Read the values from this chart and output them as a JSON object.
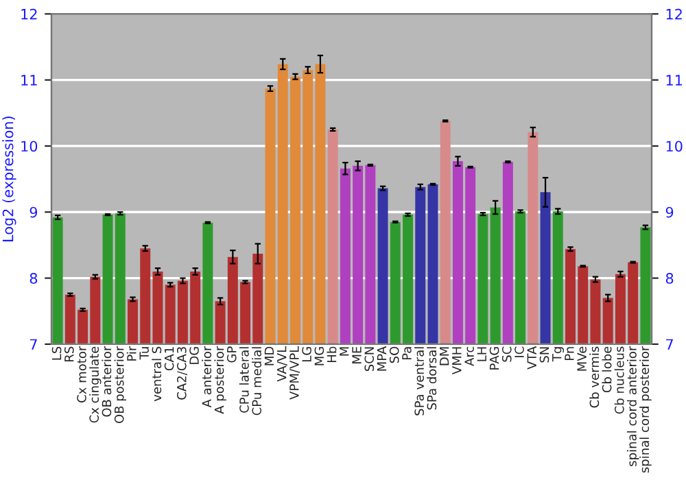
{
  "chart_data": {
    "type": "bar",
    "ylabel": "Log2 (expression)",
    "categories": [
      "LS",
      "RS",
      "Cx motor",
      "Cx cingulate",
      "OB anterior",
      "OB posterior",
      "Pir",
      "Tu",
      "ventral S",
      "CA1",
      "CA2/CA3",
      "DG",
      "A anterior",
      "A posterior",
      "GP",
      "CPu lateral",
      "CPu medial",
      "MD",
      "VA/VL",
      "VPM/VPL",
      "LG",
      "MG",
      "Hb",
      "M",
      "ME",
      "SCN",
      "MPA",
      "SO",
      "Pa",
      "SPa ventral",
      "SPa dorsal",
      "DM",
      "VMH",
      "Arc",
      "LH",
      "PAG",
      "SC",
      "IC",
      "VTA",
      "SN",
      "Tg",
      "Pn",
      "MVe",
      "Cb vermis",
      "Cb lobe",
      "Cb nucleus",
      "spinal cord anterior",
      "spinal cord posterior"
    ],
    "values": [
      8.92,
      7.75,
      7.52,
      8.02,
      8.96,
      8.98,
      7.68,
      8.45,
      8.1,
      7.9,
      7.96,
      8.1,
      8.84,
      7.65,
      8.32,
      7.94,
      8.37,
      10.87,
      11.24,
      11.05,
      11.15,
      11.24,
      10.25,
      9.66,
      9.7,
      9.71,
      9.36,
      8.85,
      8.96,
      9.38,
      9.42,
      10.38,
      9.77,
      9.68,
      8.97,
      9.07,
      9.76,
      9.01,
      10.21,
      9.3,
      9.01,
      8.44,
      8.18,
      7.98,
      7.7,
      8.06,
      8.24,
      8.77
    ],
    "errors": [
      0.03,
      0.02,
      0.02,
      0.03,
      0.01,
      0.02,
      0.03,
      0.04,
      0.05,
      0.03,
      0.04,
      0.05,
      0.01,
      0.05,
      0.1,
      0.02,
      0.15,
      0.04,
      0.08,
      0.04,
      0.05,
      0.13,
      0.02,
      0.09,
      0.07,
      0.01,
      0.03,
      0.01,
      0.02,
      0.04,
      0.01,
      0.01,
      0.07,
      0.01,
      0.02,
      0.1,
      0.01,
      0.02,
      0.07,
      0.22,
      0.04,
      0.03,
      0.01,
      0.04,
      0.05,
      0.04,
      0.01,
      0.03
    ],
    "colors": [
      "#2e9a2e",
      "#b33030",
      "#b33030",
      "#b33030",
      "#2e9a2e",
      "#2e9a2e",
      "#b33030",
      "#b33030",
      "#b33030",
      "#b33030",
      "#b33030",
      "#b33030",
      "#2e9a2e",
      "#b33030",
      "#b33030",
      "#b33030",
      "#b33030",
      "#e08a3a",
      "#e08a3a",
      "#e08a3a",
      "#e08a3a",
      "#e08a3a",
      "#d88a8a",
      "#b040c0",
      "#b040c0",
      "#b040c0",
      "#3535a5",
      "#2e9a2e",
      "#2e9a2e",
      "#3535a5",
      "#3535a5",
      "#d88a8a",
      "#b040c0",
      "#b040c0",
      "#2e9a2e",
      "#2e9a2e",
      "#b040c0",
      "#2e9a2e",
      "#d88a8a",
      "#3535a5",
      "#2e9a2e",
      "#b33030",
      "#b33030",
      "#b33030",
      "#b33030",
      "#b33030",
      "#b33030",
      "#2e9a2e"
    ],
    "ylim": [
      7,
      12
    ],
    "yticks": [
      7,
      8,
      9,
      10,
      11,
      12
    ],
    "y2lim": [
      7,
      12
    ],
    "y2ticks": [
      7,
      8,
      9,
      10,
      11,
      12
    ],
    "grid": "y"
  }
}
